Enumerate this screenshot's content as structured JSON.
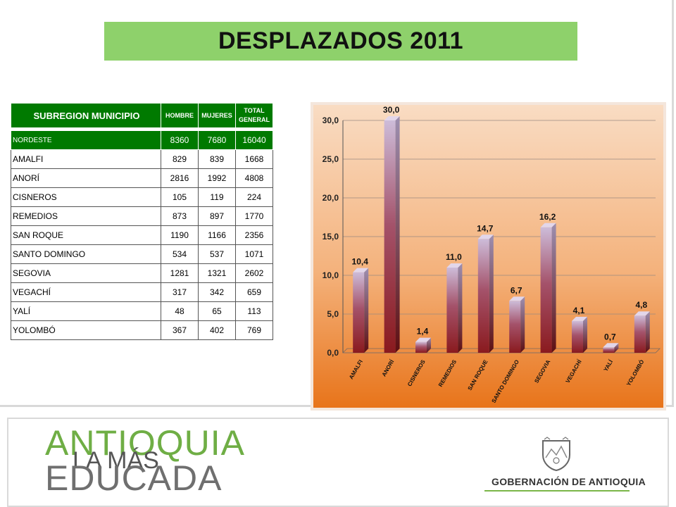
{
  "title": "DESPLAZADOS 2011",
  "table": {
    "headers": {
      "col1": "SUBREGION MUNICIPIO",
      "col2": "HOMBRE",
      "col3": "MUJERES",
      "col4": "TOTAL GENERAL"
    },
    "summary": {
      "name": "NORDESTE",
      "hombre": "8360",
      "mujeres": "7680",
      "total": "16040"
    },
    "rows": [
      {
        "name": "AMALFI",
        "hombre": "829",
        "mujeres": "839",
        "total": "1668"
      },
      {
        "name": "ANORÍ",
        "hombre": "2816",
        "mujeres": "1992",
        "total": "4808"
      },
      {
        "name": "CISNEROS",
        "hombre": "105",
        "mujeres": "119",
        "total": "224"
      },
      {
        "name": "REMEDIOS",
        "hombre": "873",
        "mujeres": "897",
        "total": "1770"
      },
      {
        "name": "SAN ROQUE",
        "hombre": "1190",
        "mujeres": "1166",
        "total": "2356"
      },
      {
        "name": "SANTO DOMINGO",
        "hombre": "534",
        "mujeres": "537",
        "total": "1071"
      },
      {
        "name": "SEGOVIA",
        "hombre": "1281",
        "mujeres": "1321",
        "total": "2602"
      },
      {
        "name": "VEGACHÍ",
        "hombre": "317",
        "mujeres": "342",
        "total": "659"
      },
      {
        "name": "YALÍ",
        "hombre": "48",
        "mujeres": "65",
        "total": "113"
      },
      {
        "name": "YOLOMBÓ",
        "hombre": "367",
        "mujeres": "402",
        "total": "769"
      }
    ]
  },
  "chart_data": {
    "type": "bar",
    "categories": [
      "AMALFI",
      "ANORÍ",
      "CISNEROS",
      "REMEDIOS",
      "SAN ROQUE",
      "SANTO DOMINGO",
      "SEGOVIA",
      "VEGACHÍ",
      "YALÍ",
      "YOLOMBÓ"
    ],
    "values": [
      10.4,
      30.0,
      1.4,
      11.0,
      14.7,
      6.7,
      16.2,
      4.1,
      0.7,
      4.8
    ],
    "value_labels": [
      "10,4",
      "30,0",
      "1,4",
      "11,0",
      "14,7",
      "6,7",
      "16,2",
      "4,1",
      "0,7",
      "4,8"
    ],
    "y_ticks": [
      "0,0",
      "5,0",
      "10,0",
      "15,0",
      "20,0",
      "25,0",
      "30,0"
    ],
    "ylim": [
      0,
      30
    ],
    "grid": true,
    "colors": {
      "bar_top": "#c9b8d8",
      "bar_bottom": "#8b1a1a",
      "bg_top": "#f7dcc4",
      "bg_bottom": "#ea7a1c"
    }
  },
  "footer": {
    "logo_line1": "ANTIOQUIA",
    "logo_line2": "LA MÁS",
    "logo_line3": "EDUCADA",
    "government": "GOBERNACIÓN DE ANTIOQUIA"
  }
}
